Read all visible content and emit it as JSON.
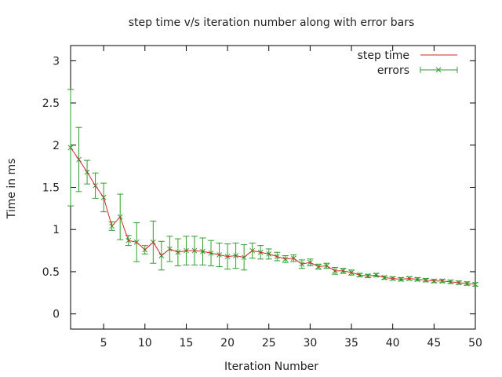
{
  "chart_data": {
    "type": "line",
    "title": "step time v/s iteration number along with error bars",
    "xlabel": "Iteration Number",
    "ylabel": "Time in ms",
    "xlim": [
      1,
      50
    ],
    "ylim": [
      -0.18,
      3.18
    ],
    "xticks": [
      5,
      10,
      15,
      20,
      25,
      30,
      35,
      40,
      45,
      50
    ],
    "yticks": [
      0,
      0.5,
      1,
      1.5,
      2,
      2.5,
      3
    ],
    "xtick_labels": [
      "5",
      "10",
      "15",
      "20",
      "25",
      "30",
      "35",
      "40",
      "45",
      "50"
    ],
    "ytick_labels": [
      "0",
      "0.5",
      "1",
      "1.5",
      "2",
      "2.5",
      "3"
    ],
    "legend_position": "top-right",
    "grid": false,
    "x": [
      1,
      2,
      3,
      4,
      5,
      6,
      7,
      8,
      9,
      10,
      11,
      12,
      13,
      14,
      15,
      16,
      17,
      18,
      19,
      20,
      21,
      22,
      23,
      24,
      25,
      26,
      27,
      28,
      29,
      30,
      31,
      32,
      33,
      34,
      35,
      36,
      37,
      38,
      39,
      40,
      41,
      42,
      43,
      44,
      45,
      46,
      47,
      48,
      49,
      50
    ],
    "series": [
      {
        "name": "step time",
        "color": "#d62728",
        "values": [
          1.97,
          1.83,
          1.68,
          1.52,
          1.38,
          1.04,
          1.15,
          0.87,
          0.85,
          0.76,
          0.85,
          0.69,
          0.77,
          0.73,
          0.75,
          0.75,
          0.74,
          0.72,
          0.7,
          0.68,
          0.69,
          0.67,
          0.75,
          0.73,
          0.71,
          0.68,
          0.65,
          0.66,
          0.59,
          0.61,
          0.56,
          0.57,
          0.51,
          0.51,
          0.49,
          0.46,
          0.45,
          0.46,
          0.43,
          0.42,
          0.41,
          0.42,
          0.41,
          0.4,
          0.39,
          0.39,
          0.38,
          0.37,
          0.36,
          0.35
        ]
      },
      {
        "name": "errors",
        "color": "#2ca02c",
        "values": [
          1.97,
          1.83,
          1.68,
          1.52,
          1.38,
          1.04,
          1.15,
          0.87,
          0.85,
          0.76,
          0.85,
          0.69,
          0.77,
          0.73,
          0.75,
          0.75,
          0.74,
          0.72,
          0.7,
          0.68,
          0.69,
          0.67,
          0.75,
          0.73,
          0.71,
          0.68,
          0.65,
          0.66,
          0.59,
          0.61,
          0.56,
          0.57,
          0.51,
          0.51,
          0.49,
          0.46,
          0.45,
          0.46,
          0.43,
          0.42,
          0.41,
          0.42,
          0.41,
          0.4,
          0.39,
          0.39,
          0.38,
          0.37,
          0.36,
          0.35
        ],
        "errors": [
          0.69,
          0.38,
          0.14,
          0.15,
          0.17,
          0.05,
          0.27,
          0.06,
          0.23,
          0.05,
          0.25,
          0.17,
          0.15,
          0.16,
          0.17,
          0.17,
          0.16,
          0.15,
          0.14,
          0.15,
          0.15,
          0.15,
          0.09,
          0.08,
          0.06,
          0.05,
          0.04,
          0.04,
          0.05,
          0.04,
          0.03,
          0.03,
          0.04,
          0.03,
          0.03,
          0.02,
          0.02,
          0.02,
          0.02,
          0.02,
          0.02,
          0.02,
          0.02,
          0.02,
          0.02,
          0.02,
          0.02,
          0.02,
          0.02,
          0.02
        ]
      }
    ]
  }
}
